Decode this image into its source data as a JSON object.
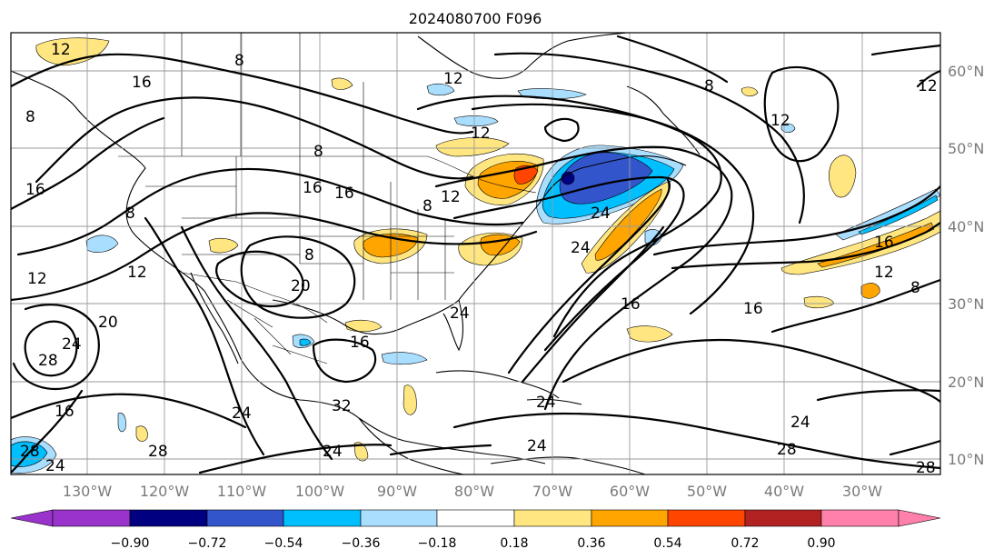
{
  "title": "2024080700 F096",
  "lon_labels": [
    "130°W",
    "120°W",
    "110°W",
    "100°W",
    "90°W",
    "80°W",
    "70°W",
    "60°W",
    "50°W",
    "40°W",
    "30°W"
  ],
  "lat_labels": [
    "60°N",
    "50°N",
    "40°N",
    "30°N",
    "20°N",
    "10°N"
  ],
  "colorbar": {
    "ticks": [
      "−0.90",
      "−0.72",
      "−0.54",
      "−0.36",
      "−0.18",
      "0.18",
      "0.36",
      "0.54",
      "0.72",
      "0.90"
    ],
    "colors": [
      "#9933cc",
      "#000080",
      "#3355cc",
      "#00bfff",
      "#aadeff",
      "#ffffff",
      "#ffe680",
      "#ffa500",
      "#ff4500",
      "#b22222",
      "#ff80aa"
    ]
  },
  "contour_labels": {
    "c1": "12",
    "c2": "16",
    "c3": "8",
    "c4": "16",
    "c5": "8",
    "c6": "12",
    "c7": "8",
    "c8": "12",
    "c9": "16",
    "c10": "12",
    "c11": "20",
    "c12": "28",
    "c13": "24",
    "c14": "16",
    "c15": "8",
    "c16": "20",
    "c17": "24",
    "c18": "16",
    "c19": "12",
    "c20": "16",
    "c21": "12",
    "c22": "8",
    "c23": "8",
    "c24": "12",
    "c25": "16",
    "c26": "24",
    "c27": "24",
    "c28": "24",
    "c29": "24",
    "c30": "28",
    "c31": "32",
    "c32": "24",
    "c33": "28",
    "c34": "24",
    "c35": "28",
    "c36": "24",
    "c37": "16",
    "c38": "12",
    "c39": "8",
    "c40": "16",
    "c41": "28",
    "c42": "24",
    "c43": "8",
    "c44": "12"
  }
}
